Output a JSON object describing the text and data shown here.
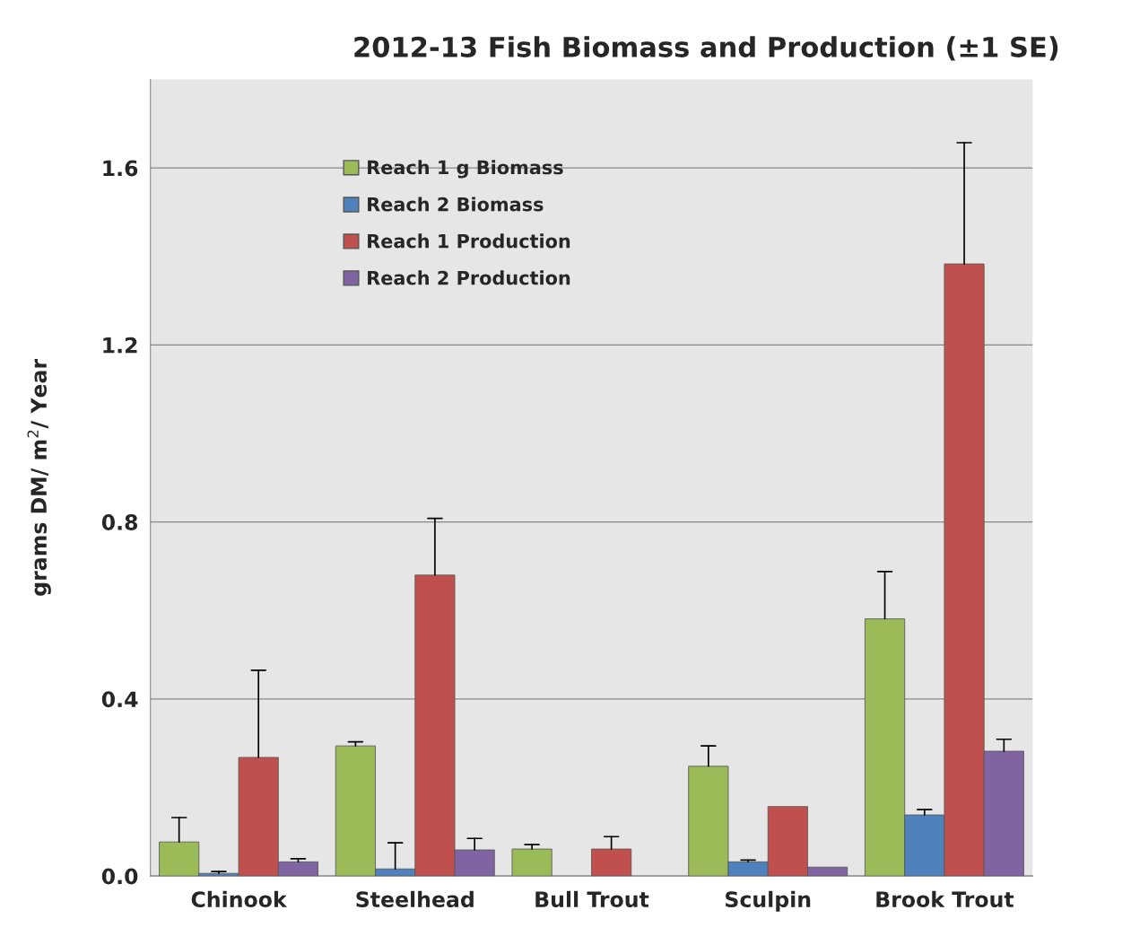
{
  "chart_data": {
    "type": "bar",
    "title": "2012-13 Fish Biomass and Production (±1 SE)",
    "ylabel": "grams DM/ m$^{2}$/ Year",
    "categories": [
      "Chinook",
      "Steelhead",
      "Bull Trout",
      "Sculpin",
      "Brook Trout"
    ],
    "series": [
      {
        "name": "Reach 1 g Biomass",
        "color": "#9bbb59",
        "values": [
          0.077,
          0.294,
          0.061,
          0.248,
          0.581
        ],
        "errors": [
          [
            0.077,
            0.132
          ],
          [
            0.294,
            0.303
          ],
          [
            0.061,
            0.071
          ],
          [
            0.248,
            0.294
          ],
          [
            0.581,
            0.688
          ]
        ]
      },
      {
        "name": "Reach 2 Biomass",
        "color": "#4f81bd",
        "values": [
          0.006,
          0.016,
          null,
          0.032,
          0.138
        ],
        "errors": [
          [
            0.006,
            0.01
          ],
          [
            0.016,
            0.075
          ],
          null,
          [
            0.032,
            0.036
          ],
          [
            0.138,
            0.15
          ]
        ]
      },
      {
        "name": "Reach 1 Production",
        "color": "#c0504d",
        "values": [
          0.268,
          0.68,
          0.061,
          0.157,
          1.383
        ],
        "errors": [
          [
            0.268,
            0.465
          ],
          [
            0.68,
            0.808
          ],
          [
            0.061,
            0.089
          ],
          null,
          [
            1.383,
            1.657
          ]
        ]
      },
      {
        "name": "Reach 2 Production",
        "color": "#8064a2",
        "values": [
          0.032,
          0.059,
          null,
          0.02,
          0.282
        ],
        "errors": [
          [
            0.032,
            0.039
          ],
          [
            0.059,
            0.085
          ],
          null,
          null,
          [
            0.282,
            0.309
          ]
        ]
      }
    ],
    "ylim": [
      0,
      1.8
    ],
    "yticks": [
      {
        "value": 0,
        "label": "0.0"
      },
      {
        "value": 0.4,
        "label": "0.4"
      },
      {
        "value": 0.8,
        "label": "0.8"
      },
      {
        "value": 1.2,
        "label": "1.2"
      },
      {
        "value": 1.6,
        "label": "1.6"
      }
    ],
    "grid": "y",
    "legend": "top left"
  }
}
